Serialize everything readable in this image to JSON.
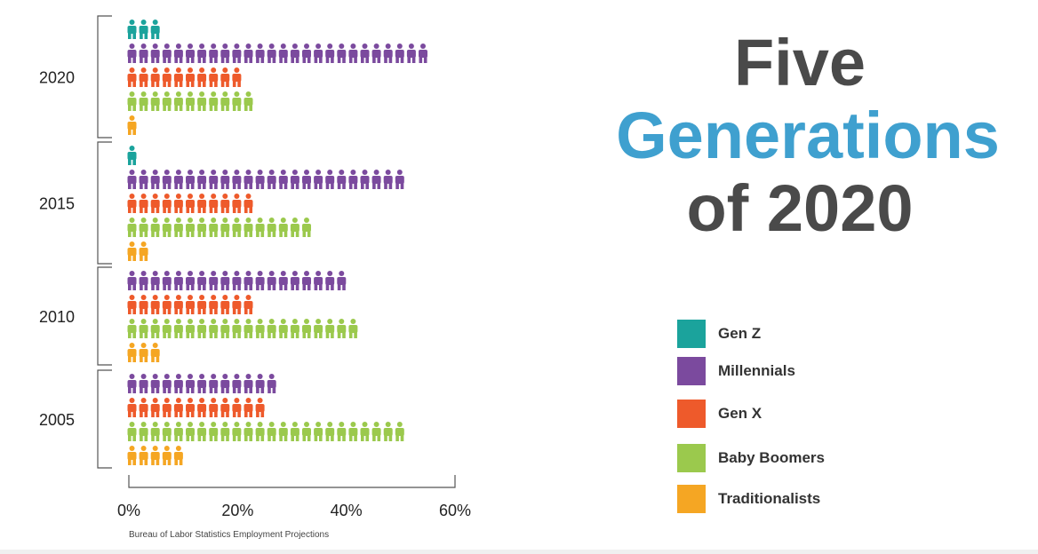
{
  "title": {
    "line1": "Five",
    "line2": "Generations",
    "line3": "of 2020"
  },
  "source": "Bureau of Labor Statistics Employment Projections",
  "colors": {
    "Gen Z": "#1ba39c",
    "Millennials": "#7b4a9e",
    "Gen X": "#ee5a2b",
    "Baby Boomers": "#9bc94d",
    "Traditionalists": "#f5a623",
    "axis": "#555555",
    "title_dark": "#4a4a4a",
    "title_accent": "#3fa0cf"
  },
  "legend": [
    {
      "label": "Gen Z",
      "color": "#1ba39c"
    },
    {
      "label": "Millennials",
      "color": "#7b4a9e"
    },
    {
      "label": "Gen X",
      "color": "#ee5a2b"
    },
    {
      "label": "Baby Boomers",
      "color": "#9bc94d"
    },
    {
      "label": "Traditionalists",
      "color": "#f5a623"
    }
  ],
  "chart_data": {
    "type": "bar",
    "style": "pictogram",
    "orientation": "horizontal",
    "categories": [
      "2020",
      "2015",
      "2010",
      "2005"
    ],
    "series": [
      {
        "name": "Gen Z",
        "values": [
          6,
          2,
          0,
          0
        ]
      },
      {
        "name": "Millennials",
        "values": [
          56,
          52,
          41,
          28
        ]
      },
      {
        "name": "Gen X",
        "values": [
          22,
          24,
          24,
          26
        ]
      },
      {
        "name": "Baby Boomers",
        "values": [
          24,
          35,
          43,
          52
        ]
      },
      {
        "name": "Traditionalists",
        "values": [
          2,
          4,
          6,
          10
        ]
      }
    ],
    "xticks": [
      "0%",
      "20%",
      "40%",
      "60%"
    ],
    "xlim": [
      0,
      60
    ],
    "grid": false,
    "legend_position": "right"
  }
}
